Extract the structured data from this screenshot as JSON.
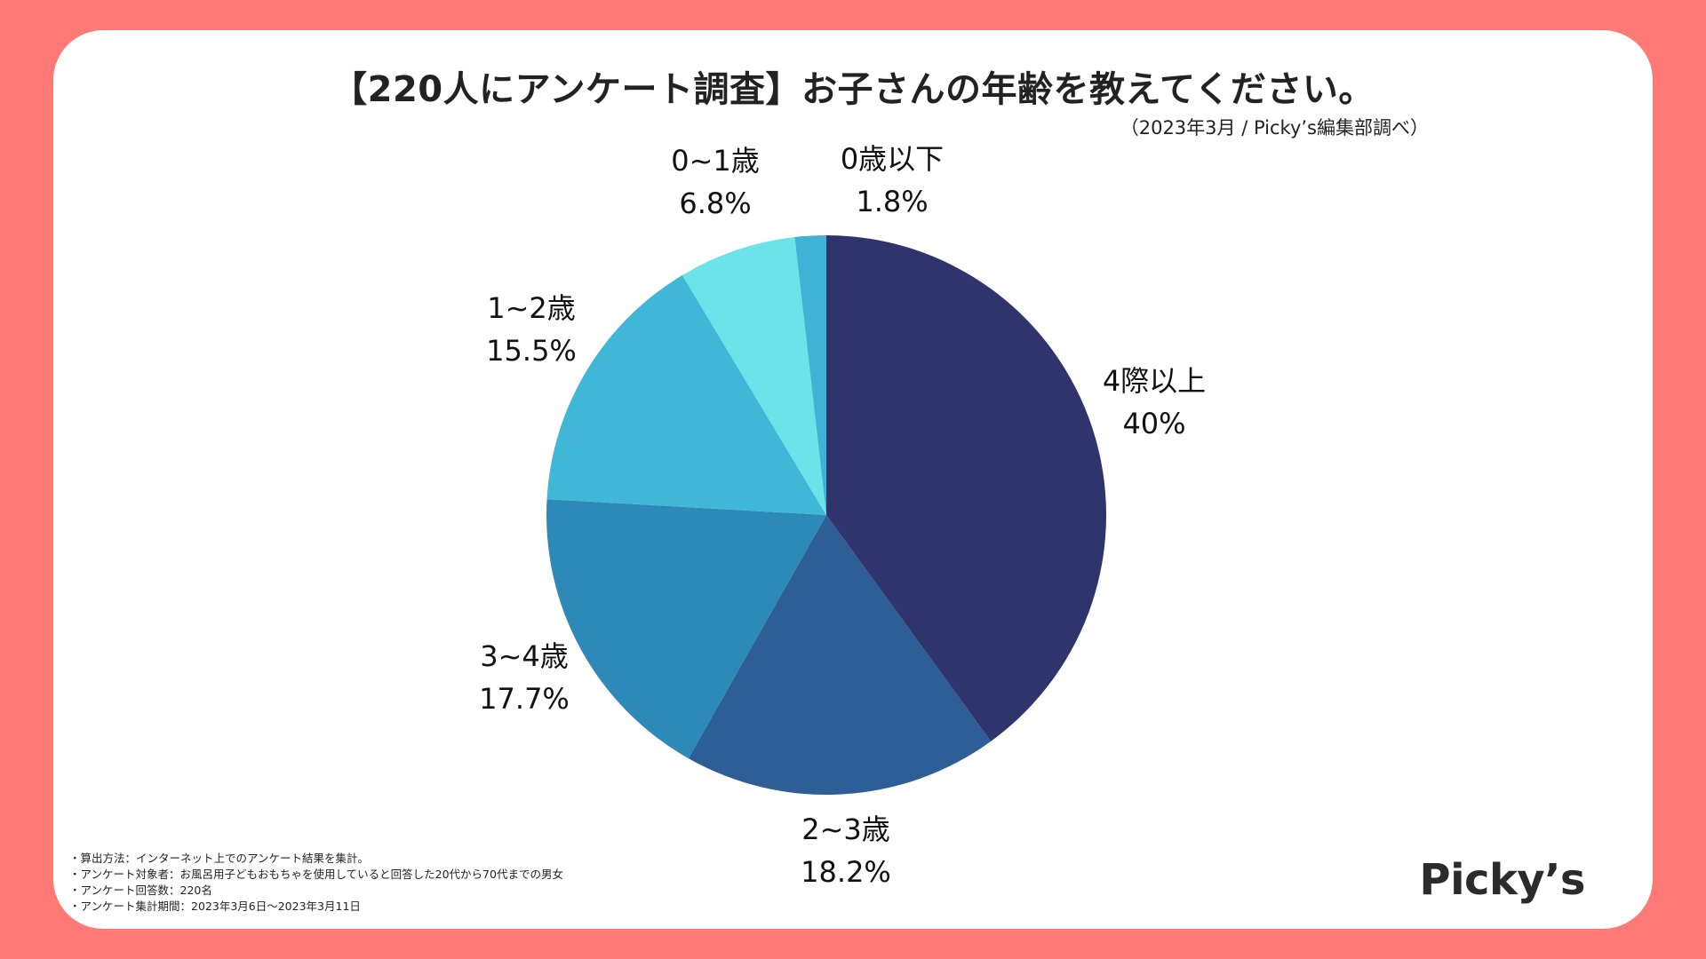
{
  "title": "【220人にアンケート調査】お子さんの年齢を教えてください。",
  "source": "（2023年3月 / Picky’s編集部調べ）",
  "notes": [
    "算出方法：インターネット上でのアンケート結果を集計。",
    "アンケート対象者：お風呂用子どもおもちゃを使用していると回答した20代から70代までの男女",
    "アンケート回答数：220名",
    "アンケート集計期間：2023年3月6日〜2023年3月11日"
  ],
  "logo": "Picky’s",
  "colors": {
    "frame": "#ff7a76",
    "card": "#ffffff"
  },
  "chart_data": {
    "type": "pie",
    "start": "12 o'clock",
    "direction": "clockwise",
    "slices": [
      {
        "label": "4際以上",
        "value": 40.0,
        "display": "40%",
        "color": "#30346c"
      },
      {
        "label": "2~3歳",
        "value": 18.2,
        "display": "18.2%",
        "color": "#2e5e96"
      },
      {
        "label": "3~4歳",
        "value": 17.7,
        "display": "17.7%",
        "color": "#2d8ab8"
      },
      {
        "label": "1~2歳",
        "value": 15.5,
        "display": "15.5%",
        "color": "#41b7d7"
      },
      {
        "label": "0~1歳",
        "value": 6.8,
        "display": "6.8%",
        "color": "#6be3e9"
      },
      {
        "label": "0歳以下",
        "value": 1.8,
        "display": "1.8%",
        "color": "#3fb3d6"
      }
    ]
  }
}
